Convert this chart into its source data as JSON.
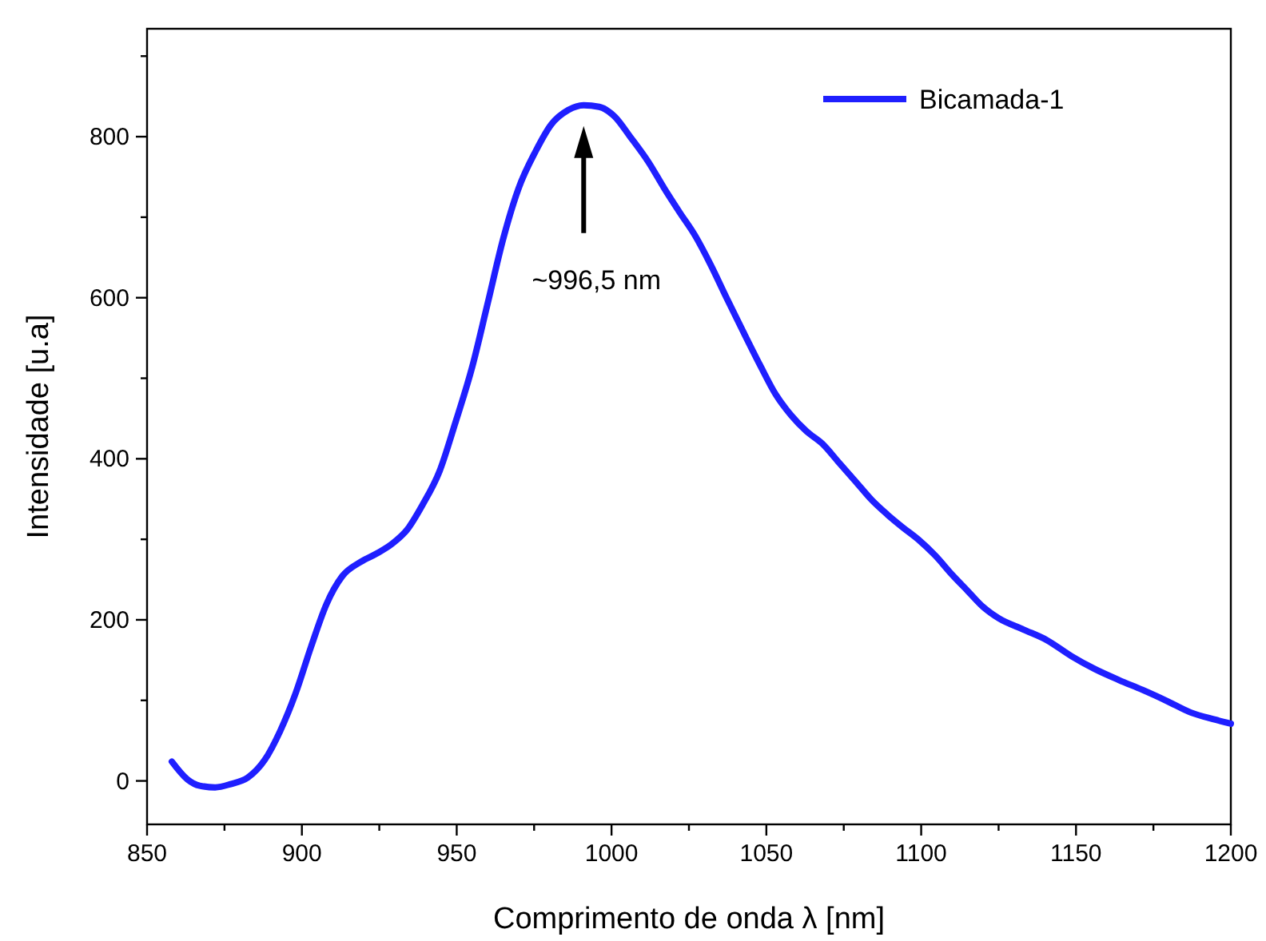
{
  "chart_data": {
    "type": "line",
    "xlabel": "Comprimento de onda λ [nm]",
    "ylabel": "Intensidade [u.a]",
    "xlim": [
      850,
      1200
    ],
    "ylim": [
      -54,
      934
    ],
    "xticks": [
      850,
      {
        "value": 875,
        "label": null
      },
      900,
      {
        "value": 925,
        "label": null
      },
      950,
      {
        "value": 975,
        "label": null
      },
      1000,
      {
        "value": 1025,
        "label": null
      },
      1050,
      {
        "value": 1075,
        "label": null
      },
      1100,
      {
        "value": 1125,
        "label": null
      },
      1150,
      {
        "value": 1175,
        "label": null
      },
      1200
    ],
    "yticks": [
      0,
      {
        "value": 100,
        "label": null
      },
      200,
      {
        "value": 300,
        "label": null
      },
      400,
      {
        "value": 500,
        "label": null
      },
      600,
      {
        "value": 700,
        "label": null
      },
      800,
      {
        "value": 900,
        "label": null
      }
    ],
    "grid": false,
    "legend": "top right",
    "marker": "none",
    "line_style": "solid",
    "annotations": [
      "~996,5 nm"
    ],
    "series": [
      {
        "name": "Bicamada-1",
        "color": "#1f1fff",
        "x": [
          858,
          863,
          867,
          872,
          877,
          882.5,
          888,
          893,
          898,
          903,
          908,
          913,
          919,
          924,
          929,
          934,
          939,
          944.5,
          949.5,
          955,
          960,
          965,
          970,
          975.5,
          980.5,
          986,
          991,
          996,
          1001,
          1006,
          1012,
          1017,
          1022,
          1027,
          1032,
          1037,
          1042.5,
          1048,
          1053,
          1058,
          1063,
          1068,
          1073.5,
          1079,
          1084,
          1089,
          1094,
          1099,
          1104.5,
          1110,
          1115,
          1120,
          1125,
          1133,
          1140.5,
          1148.5,
          1156,
          1164,
          1171.5,
          1179.5,
          1187,
          1195,
          1200
        ],
        "values": [
          24,
          2,
          -6,
          -8,
          -4,
          4,
          26,
          62,
          109,
          167,
          220,
          254,
          272,
          282,
          294,
          312,
          343,
          385,
          444,
          514,
          593,
          673,
          736,
          782,
          815,
          833,
          839,
          837,
          825,
          800,
          768,
          736,
          706,
          677,
          641,
          601,
          558,
          516,
          480,
          454,
          434,
          419,
          395,
          371,
          349,
          331,
          315,
          300,
          280,
          256,
          236,
          216,
          202,
          188,
          175,
          155,
          139,
          125,
          113,
          99,
          85,
          76,
          71
        ]
      }
    ]
  }
}
